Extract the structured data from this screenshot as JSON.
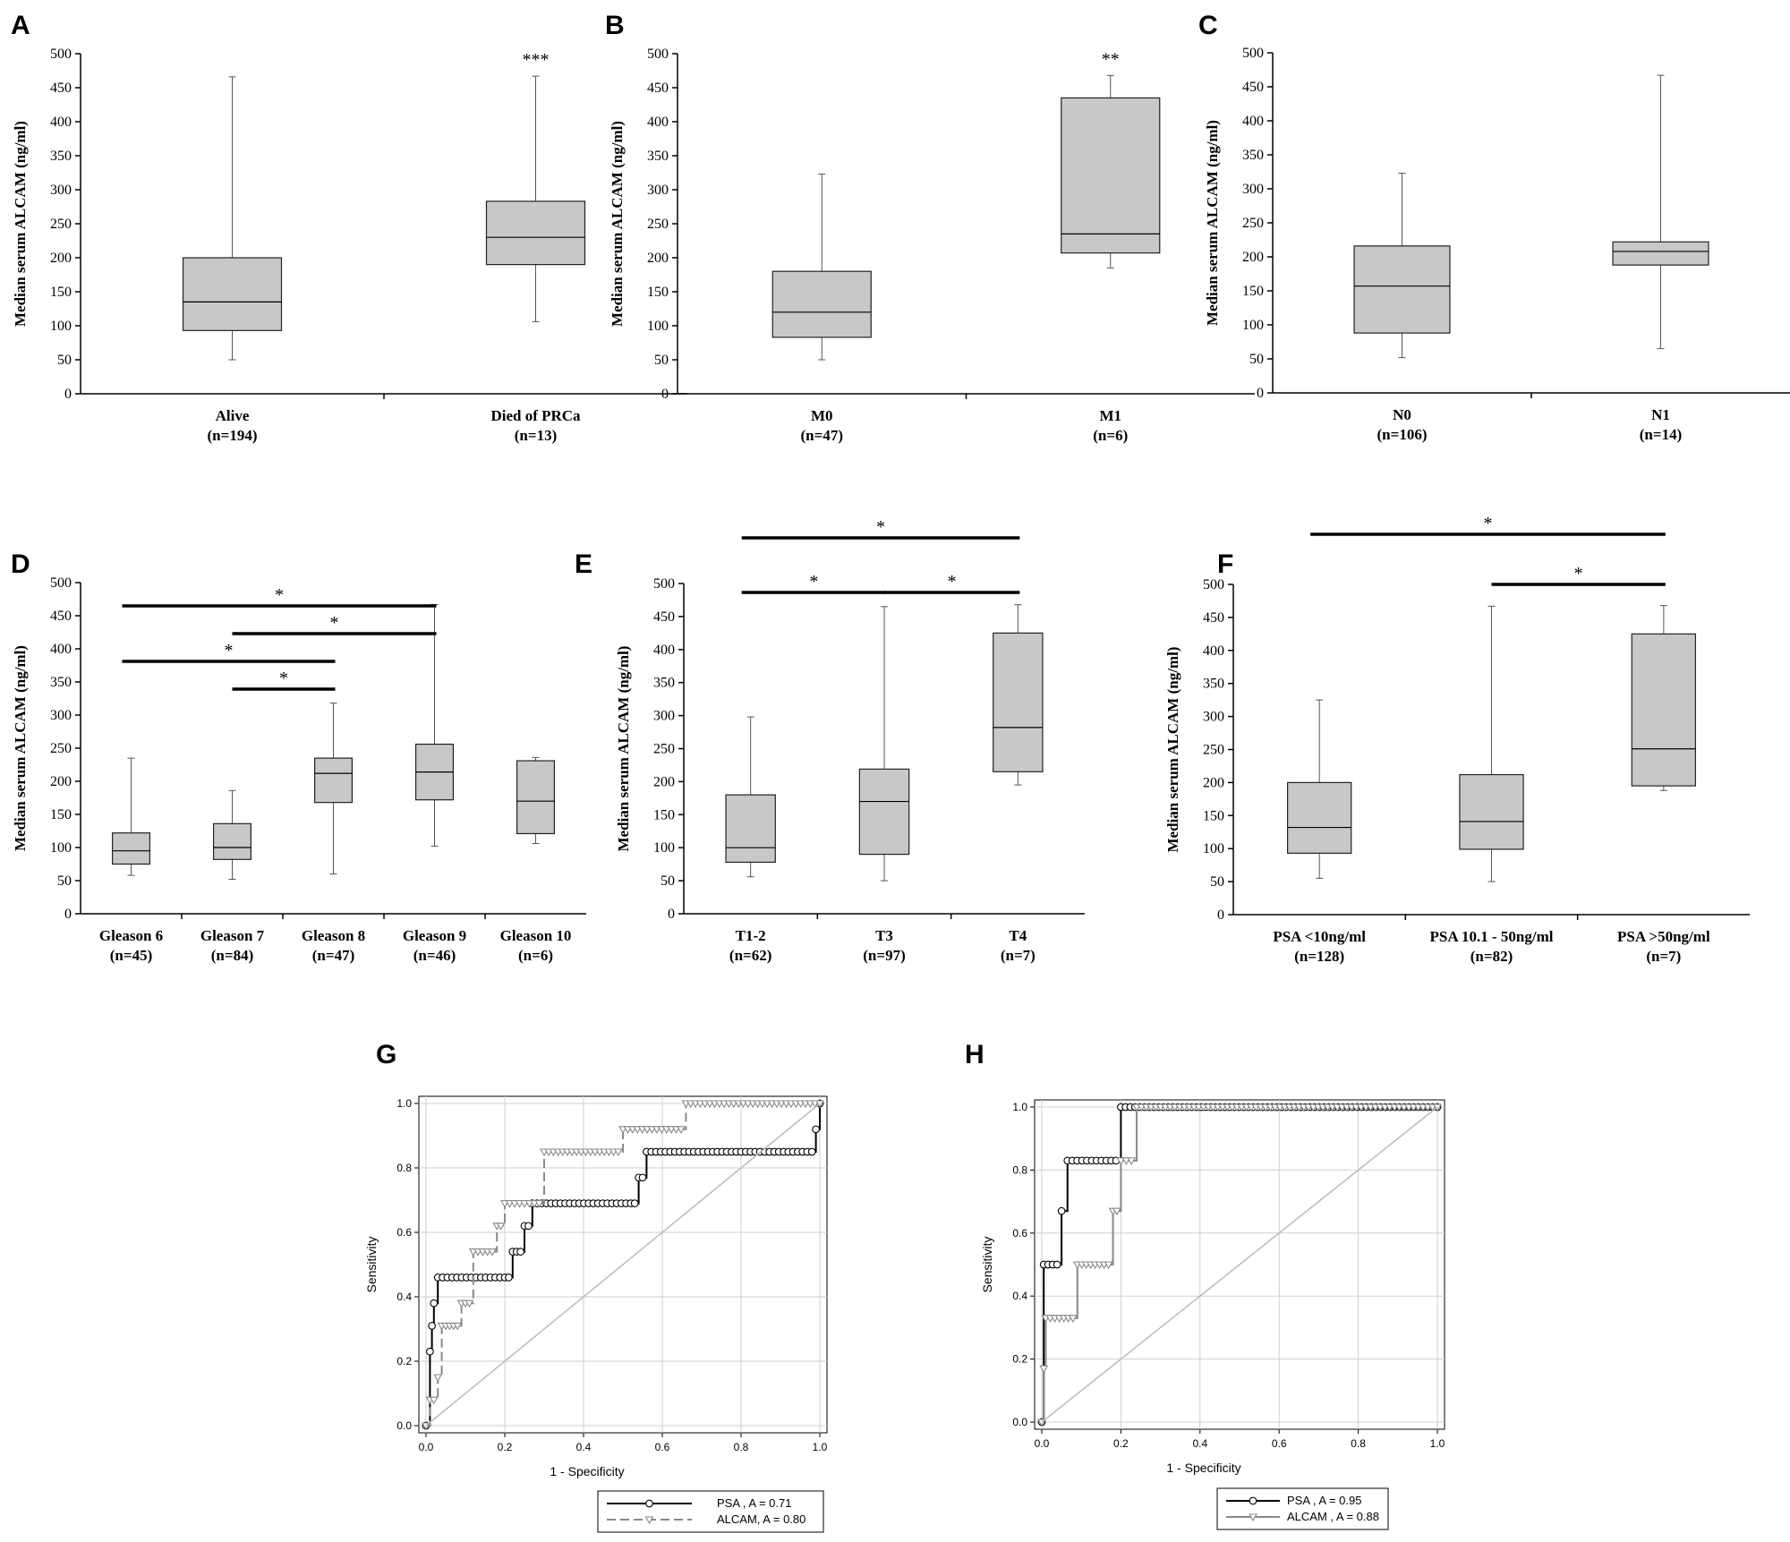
{
  "chart_data": [
    {
      "panel": "A",
      "type": "box",
      "ylabel": "Median serum ALCAM (ng/ml)",
      "ylim": [
        0,
        500
      ],
      "yticks": [
        0,
        50,
        100,
        150,
        200,
        250,
        300,
        350,
        400,
        450,
        500
      ],
      "categories": [
        {
          "label": "Alive",
          "n": "(n=194)",
          "min": 50,
          "q1": 93,
          "median": 135,
          "q3": 200,
          "max": 466,
          "sig": ""
        },
        {
          "label": "Died of PRCa",
          "n": "(n=13)",
          "min": 106,
          "q1": 190,
          "median": 230,
          "q3": 283,
          "max": 467,
          "sig": "***"
        }
      ],
      "brackets": []
    },
    {
      "panel": "B",
      "type": "box",
      "ylabel": "Median serum ALCAM (ng/ml)",
      "ylim": [
        0,
        500
      ],
      "yticks": [
        0,
        50,
        100,
        150,
        200,
        250,
        300,
        350,
        400,
        450,
        500
      ],
      "categories": [
        {
          "label": "M0",
          "n": "(n=47)",
          "min": 50,
          "q1": 83,
          "median": 120,
          "q3": 180,
          "max": 323,
          "sig": ""
        },
        {
          "label": "M1",
          "n": "(n=6)",
          "min": 185,
          "q1": 207,
          "median": 235,
          "q3": 435,
          "max": 468,
          "sig": "**"
        }
      ],
      "brackets": []
    },
    {
      "panel": "C",
      "type": "box",
      "ylabel": "Median serum ALCAM (ng/ml)",
      "ylim": [
        0,
        500
      ],
      "yticks": [
        0,
        50,
        100,
        150,
        200,
        250,
        300,
        350,
        400,
        450,
        500
      ],
      "categories": [
        {
          "label": "N0",
          "n": "(n=106)",
          "min": 52,
          "q1": 88,
          "median": 157,
          "q3": 216,
          "max": 323,
          "sig": ""
        },
        {
          "label": "N1",
          "n": "(n=14)",
          "min": 65,
          "q1": 188,
          "median": 208,
          "q3": 222,
          "max": 467,
          "sig": ""
        }
      ],
      "brackets": []
    },
    {
      "panel": "D",
      "type": "box",
      "ylabel": "Median serum ALCAM (ng/ml)",
      "ylim": [
        0,
        500
      ],
      "yticks": [
        0,
        50,
        100,
        150,
        200,
        250,
        300,
        350,
        400,
        450,
        500
      ],
      "categories": [
        {
          "label": "Gleason 6",
          "n": "(n=45)",
          "min": 58,
          "q1": 75,
          "median": 95,
          "q3": 122,
          "max": 235,
          "sig": ""
        },
        {
          "label": "Gleason 7",
          "n": "(n=84)",
          "min": 52,
          "q1": 82,
          "median": 100,
          "q3": 136,
          "max": 186,
          "sig": ""
        },
        {
          "label": "Gleason 8",
          "n": "(n=47)",
          "min": 60,
          "q1": 168,
          "median": 212,
          "q3": 235,
          "max": 318,
          "sig": ""
        },
        {
          "label": "Gleason 9",
          "n": "(n=46)",
          "min": 102,
          "q1": 172,
          "median": 214,
          "q3": 256,
          "max": 467,
          "sig": ""
        },
        {
          "label": "Gleason 10",
          "n": "(n=6)",
          "min": 106,
          "q1": 121,
          "median": 170,
          "q3": 231,
          "max": 236,
          "sig": ""
        }
      ],
      "brackets": [
        {
          "from": 0,
          "to": 3,
          "tier": 4,
          "label": "*"
        },
        {
          "from": 1,
          "to": 3,
          "tier": 3,
          "label": "*"
        },
        {
          "from": 0,
          "to": 2,
          "tier": 2,
          "label": "*"
        },
        {
          "from": 1,
          "to": 2,
          "tier": 1,
          "label": "*"
        }
      ]
    },
    {
      "panel": "E",
      "type": "box",
      "ylabel": "Median serum ALCAM (ng/ml)",
      "ylim": [
        0,
        500
      ],
      "yticks": [
        0,
        50,
        100,
        150,
        200,
        250,
        300,
        350,
        400,
        450,
        500
      ],
      "categories": [
        {
          "label": "T1-2",
          "n": "(n=62)",
          "min": 56,
          "q1": 78,
          "median": 100,
          "q3": 180,
          "max": 298,
          "sig": ""
        },
        {
          "label": "T3",
          "n": "(n=97)",
          "min": 50,
          "q1": 90,
          "median": 170,
          "q3": 219,
          "max": 465,
          "sig": ""
        },
        {
          "label": "T4",
          "n": "(n=7)",
          "min": 195,
          "q1": 215,
          "median": 282,
          "q3": 425,
          "max": 468,
          "sig": ""
        }
      ],
      "brackets": [
        {
          "from": 0,
          "to": 2,
          "tier": 2,
          "label": "*"
        },
        {
          "from": 0,
          "to": 1,
          "tier": 1,
          "label": "*"
        },
        {
          "from": 1,
          "to": 2,
          "tier": 1,
          "label": "*"
        }
      ]
    },
    {
      "panel": "F",
      "type": "box",
      "ylabel": "Median serum ALCAM (ng/ml)",
      "ylim": [
        0,
        500
      ],
      "yticks": [
        0,
        50,
        100,
        150,
        200,
        250,
        300,
        350,
        400,
        450,
        500
      ],
      "categories": [
        {
          "label": "PSA <10ng/ml",
          "n": "(n=128)",
          "min": 55,
          "q1": 93,
          "median": 132,
          "q3": 200,
          "max": 325,
          "sig": ""
        },
        {
          "label": "PSA 10.1 - 50ng/ml",
          "n": "(n=82)",
          "min": 50,
          "q1": 99,
          "median": 141,
          "q3": 212,
          "max": 467,
          "sig": ""
        },
        {
          "label": "PSA >50ng/ml",
          "n": "(n=7)",
          "min": 188,
          "q1": 195,
          "median": 251,
          "q3": 425,
          "max": 468,
          "sig": ""
        }
      ],
      "brackets": [
        {
          "from": 0,
          "to": 2,
          "tier": 2,
          "label": "*"
        },
        {
          "from": 1,
          "to": 2,
          "tier": 1,
          "label": "*"
        }
      ]
    },
    {
      "panel": "G",
      "type": "line",
      "xlabel": "1 - Specificity",
      "ylabel": "Sensitivity",
      "xlim": [
        0,
        1
      ],
      "ylim": [
        0,
        1
      ],
      "xticks": [
        "0.0",
        "0.2",
        "0.4",
        "0.6",
        "0.8",
        "1.0"
      ],
      "yticks": [
        "0.0",
        "0.2",
        "0.4",
        "0.6",
        "0.8",
        "1.0"
      ],
      "grid": true,
      "legend": "bottom",
      "series": [
        {
          "name": "PSA , A = 0.71",
          "color": "#000000",
          "dash": false,
          "marker": "circle",
          "x": [
            0.0,
            0.01,
            0.015,
            0.02,
            0.03,
            0.2,
            0.22,
            0.25,
            0.27,
            0.52,
            0.54,
            0.56,
            0.98,
            0.99,
            1.0
          ],
          "y": [
            0.0,
            0.23,
            0.31,
            0.38,
            0.46,
            0.46,
            0.54,
            0.62,
            0.69,
            0.69,
            0.77,
            0.85,
            0.85,
            0.92,
            1.0
          ]
        },
        {
          "name": "ALCAM, A = 0.80",
          "color": "#888888",
          "dash": true,
          "marker": "triangle",
          "x": [
            0.0,
            0.01,
            0.03,
            0.04,
            0.06,
            0.09,
            0.12,
            0.18,
            0.2,
            0.3,
            0.5,
            0.66,
            1.0
          ],
          "y": [
            0.0,
            0.08,
            0.15,
            0.31,
            0.31,
            0.38,
            0.54,
            0.62,
            0.69,
            0.85,
            0.92,
            1.0,
            1.0
          ]
        },
        {
          "name": "",
          "color": "#bbbbbb",
          "dash": false,
          "marker": "none",
          "x": [
            0.0,
            1.0
          ],
          "y": [
            0.0,
            1.0
          ]
        }
      ]
    },
    {
      "panel": "H",
      "type": "line",
      "xlabel": "1 - Specificity",
      "ylabel": "Sensitivity",
      "xlim": [
        0,
        1
      ],
      "ylim": [
        0,
        1
      ],
      "xticks": [
        "0.0",
        "0.2",
        "0.4",
        "0.6",
        "0.8",
        "1.0"
      ],
      "yticks": [
        "0.0",
        "0.2",
        "0.4",
        "0.6",
        "0.8",
        "1.0"
      ],
      "grid": true,
      "legend": "bottom",
      "series": [
        {
          "name": "PSA , A = 0.95",
          "color": "#000000",
          "dash": false,
          "marker": "circle",
          "x": [
            0.0,
            0.005,
            0.05,
            0.065,
            0.2,
            1.0
          ],
          "y": [
            0.0,
            0.5,
            0.67,
            0.83,
            1.0,
            1.0
          ]
        },
        {
          "name": "ALCAM , A = 0.88",
          "color": "#888888",
          "dash": false,
          "marker": "triangle",
          "x": [
            0.0,
            0.005,
            0.01,
            0.09,
            0.18,
            0.2,
            0.24,
            1.0
          ],
          "y": [
            0.0,
            0.17,
            0.33,
            0.5,
            0.67,
            0.83,
            1.0,
            1.0
          ]
        },
        {
          "name": "",
          "color": "#bbbbbb",
          "dash": false,
          "marker": "none",
          "x": [
            0.0,
            1.0
          ],
          "y": [
            0.0,
            1.0
          ]
        }
      ]
    }
  ]
}
